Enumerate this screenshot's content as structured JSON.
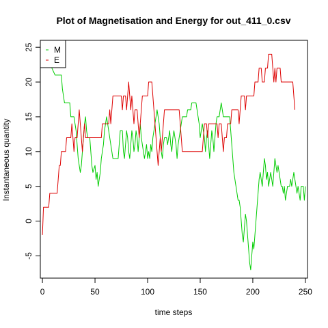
{
  "chart_data": {
    "type": "line",
    "title": "Plot of Magnetisation and Energy for out_411_0.csv",
    "xlabel": "time steps",
    "ylabel": "Instantaneous quantity",
    "xlim": [
      -2,
      252
    ],
    "ylim": [
      -8.2,
      26
    ],
    "xticks": [
      0,
      50,
      100,
      150,
      200,
      250
    ],
    "yticks": [
      -5,
      0,
      5,
      10,
      15,
      20,
      25
    ],
    "grid": false,
    "legend_position": "top-left",
    "series": [
      {
        "name": "M",
        "color": "#00cc00",
        "points": [
          [
            0,
            25
          ],
          [
            3,
            24
          ],
          [
            6,
            23
          ],
          [
            9,
            22
          ],
          [
            12,
            21
          ],
          [
            18,
            21
          ],
          [
            19,
            19
          ],
          [
            20,
            18
          ],
          [
            21,
            17
          ],
          [
            26,
            17
          ],
          [
            27,
            15
          ],
          [
            30,
            15
          ],
          [
            31,
            14
          ],
          [
            32,
            13
          ],
          [
            33,
            11
          ],
          [
            34,
            9
          ],
          [
            35,
            8
          ],
          [
            36,
            7
          ],
          [
            37,
            8
          ],
          [
            38,
            10
          ],
          [
            40,
            14
          ],
          [
            41,
            15
          ],
          [
            42,
            13
          ],
          [
            43,
            12
          ],
          [
            45,
            12
          ],
          [
            46,
            10
          ],
          [
            47,
            8
          ],
          [
            48,
            7
          ],
          [
            50,
            8
          ],
          [
            51,
            6
          ],
          [
            52,
            7
          ],
          [
            53,
            5
          ],
          [
            55,
            7
          ],
          [
            56,
            9
          ],
          [
            58,
            11
          ],
          [
            59,
            13
          ],
          [
            60,
            14
          ],
          [
            61,
            15
          ],
          [
            62,
            14
          ],
          [
            63,
            13
          ],
          [
            64,
            12
          ],
          [
            65,
            11
          ],
          [
            66,
            10
          ],
          [
            67,
            9
          ],
          [
            72,
            9
          ],
          [
            73,
            11
          ],
          [
            74,
            13
          ],
          [
            76,
            13
          ],
          [
            77,
            10
          ],
          [
            78,
            9
          ],
          [
            79,
            11
          ],
          [
            80,
            13
          ],
          [
            81,
            12
          ],
          [
            82,
            10
          ],
          [
            83,
            9
          ],
          [
            84,
            11
          ],
          [
            85,
            13
          ],
          [
            86,
            12
          ],
          [
            87,
            10
          ],
          [
            88,
            11
          ],
          [
            89,
            13
          ],
          [
            90,
            12
          ],
          [
            91,
            10
          ],
          [
            92,
            12
          ],
          [
            93,
            14
          ],
          [
            94,
            12
          ],
          [
            95,
            11
          ],
          [
            96,
            10
          ],
          [
            97,
            9
          ],
          [
            98,
            10
          ],
          [
            99,
            11
          ],
          [
            100,
            9
          ],
          [
            101,
            10
          ],
          [
            102,
            9
          ],
          [
            103,
            11
          ],
          [
            104,
            10
          ],
          [
            105,
            12
          ],
          [
            106,
            13
          ],
          [
            107,
            14
          ],
          [
            108,
            15
          ],
          [
            109,
            16
          ],
          [
            110,
            15
          ],
          [
            111,
            14
          ],
          [
            112,
            12
          ],
          [
            113,
            10
          ],
          [
            114,
            9
          ],
          [
            115,
            11
          ],
          [
            116,
            12
          ],
          [
            118,
            12
          ],
          [
            119,
            11
          ],
          [
            120,
            12
          ],
          [
            121,
            13
          ],
          [
            122,
            11
          ],
          [
            123,
            10
          ],
          [
            124,
            12
          ],
          [
            125,
            13
          ],
          [
            126,
            12
          ],
          [
            127,
            11
          ],
          [
            128,
            9
          ],
          [
            129,
            11
          ],
          [
            130,
            12
          ],
          [
            131,
            13
          ],
          [
            132,
            14
          ],
          [
            133,
            15
          ],
          [
            137,
            15
          ],
          [
            138,
            16
          ],
          [
            141,
            16
          ],
          [
            142,
            17
          ],
          [
            146,
            17
          ],
          [
            147,
            16
          ],
          [
            148,
            15
          ],
          [
            149,
            14
          ],
          [
            150,
            12
          ],
          [
            151,
            13
          ],
          [
            152,
            14
          ],
          [
            153,
            13
          ],
          [
            154,
            12
          ],
          [
            155,
            10
          ],
          [
            156,
            12
          ],
          [
            157,
            13
          ],
          [
            158,
            11
          ],
          [
            159,
            9
          ],
          [
            160,
            11
          ],
          [
            161,
            13
          ],
          [
            162,
            12
          ],
          [
            163,
            10
          ],
          [
            164,
            12
          ],
          [
            165,
            14
          ],
          [
            166,
            15
          ],
          [
            168,
            15
          ],
          [
            169,
            16
          ],
          [
            170,
            17
          ],
          [
            171,
            16
          ],
          [
            172,
            15
          ],
          [
            178,
            15
          ],
          [
            179,
            13
          ],
          [
            180,
            11
          ],
          [
            181,
            9
          ],
          [
            182,
            7
          ],
          [
            183,
            6
          ],
          [
            184,
            5
          ],
          [
            185,
            4
          ],
          [
            186,
            3
          ],
          [
            187,
            3
          ],
          [
            188,
            2
          ],
          [
            189,
            0
          ],
          [
            190,
            -2
          ],
          [
            191,
            -3
          ],
          [
            192,
            -1
          ],
          [
            193,
            1
          ],
          [
            194,
            0
          ],
          [
            195,
            -2
          ],
          [
            196,
            -4
          ],
          [
            197,
            -6
          ],
          [
            198,
            -7
          ],
          [
            199,
            -5
          ],
          [
            200,
            -3
          ],
          [
            201,
            -4
          ],
          [
            202,
            -2
          ],
          [
            203,
            0
          ],
          [
            204,
            2
          ],
          [
            205,
            4
          ],
          [
            206,
            6
          ],
          [
            207,
            7
          ],
          [
            208,
            6
          ],
          [
            209,
            5
          ],
          [
            210,
            7
          ],
          [
            211,
            9
          ],
          [
            212,
            8
          ],
          [
            213,
            6
          ],
          [
            214,
            7
          ],
          [
            215,
            5
          ],
          [
            216,
            6
          ],
          [
            217,
            7
          ],
          [
            218,
            6
          ],
          [
            219,
            5
          ],
          [
            220,
            7
          ],
          [
            221,
            9
          ],
          [
            222,
            8
          ],
          [
            223,
            7
          ],
          [
            224,
            8
          ],
          [
            225,
            7
          ],
          [
            226,
            6
          ],
          [
            227,
            5
          ],
          [
            228,
            5
          ],
          [
            229,
            4
          ],
          [
            230,
            5
          ],
          [
            231,
            3
          ],
          [
            232,
            4
          ],
          [
            233,
            5
          ],
          [
            235,
            5
          ],
          [
            236,
            6
          ],
          [
            237,
            5
          ],
          [
            238,
            6
          ],
          [
            239,
            7
          ],
          [
            240,
            6
          ],
          [
            241,
            5
          ],
          [
            242,
            4
          ],
          [
            243,
            5
          ],
          [
            244,
            4
          ],
          [
            245,
            3
          ],
          [
            246,
            5
          ],
          [
            248,
            5
          ],
          [
            249,
            3
          ],
          [
            250,
            5
          ]
        ]
      },
      {
        "name": "E",
        "color": "#dd0000",
        "points": [
          [
            0,
            -2
          ],
          [
            1,
            2
          ],
          [
            6,
            2
          ],
          [
            7,
            4
          ],
          [
            14,
            4
          ],
          [
            15,
            6
          ],
          [
            16,
            8
          ],
          [
            17,
            8
          ],
          [
            18,
            10
          ],
          [
            22,
            10
          ],
          [
            23,
            12
          ],
          [
            27,
            12
          ],
          [
            28,
            14
          ],
          [
            29,
            12
          ],
          [
            30,
            10
          ],
          [
            31,
            12
          ],
          [
            33,
            12
          ],
          [
            34,
            14
          ],
          [
            35,
            16
          ],
          [
            36,
            14
          ],
          [
            37,
            12
          ],
          [
            38,
            10
          ],
          [
            39,
            12
          ],
          [
            40,
            14
          ],
          [
            41,
            12
          ],
          [
            56,
            12
          ],
          [
            57,
            14
          ],
          [
            63,
            14
          ],
          [
            64,
            16
          ],
          [
            65,
            14
          ],
          [
            66,
            16
          ],
          [
            67,
            18
          ],
          [
            75,
            18
          ],
          [
            76,
            16
          ],
          [
            77,
            18
          ],
          [
            79,
            18
          ],
          [
            80,
            16
          ],
          [
            81,
            18
          ],
          [
            82,
            20
          ],
          [
            83,
            18
          ],
          [
            84,
            16
          ],
          [
            85,
            18
          ],
          [
            86,
            16
          ],
          [
            87,
            14
          ],
          [
            88,
            16
          ],
          [
            90,
            16
          ],
          [
            91,
            14
          ],
          [
            92,
            12
          ],
          [
            93,
            14
          ],
          [
            94,
            16
          ],
          [
            95,
            18
          ],
          [
            100,
            18
          ],
          [
            101,
            20
          ],
          [
            104,
            20
          ],
          [
            105,
            18
          ],
          [
            106,
            16
          ],
          [
            107,
            14
          ],
          [
            108,
            12
          ],
          [
            109,
            10
          ],
          [
            110,
            8
          ],
          [
            111,
            10
          ],
          [
            112,
            12
          ],
          [
            113,
            10
          ],
          [
            114,
            12
          ],
          [
            115,
            14
          ],
          [
            116,
            16
          ],
          [
            130,
            16
          ],
          [
            131,
            14
          ],
          [
            132,
            12
          ],
          [
            133,
            10
          ],
          [
            152,
            10
          ],
          [
            153,
            12
          ],
          [
            154,
            14
          ],
          [
            156,
            14
          ],
          [
            157,
            12
          ],
          [
            158,
            14
          ],
          [
            166,
            14
          ],
          [
            167,
            12
          ],
          [
            168,
            14
          ],
          [
            170,
            14
          ],
          [
            171,
            12
          ],
          [
            172,
            10
          ],
          [
            173,
            12
          ],
          [
            175,
            12
          ],
          [
            176,
            14
          ],
          [
            179,
            14
          ],
          [
            180,
            16
          ],
          [
            186,
            16
          ],
          [
            187,
            14
          ],
          [
            188,
            16
          ],
          [
            189,
            18
          ],
          [
            192,
            18
          ],
          [
            193,
            16
          ],
          [
            194,
            18
          ],
          [
            201,
            18
          ],
          [
            202,
            20
          ],
          [
            205,
            20
          ],
          [
            206,
            22
          ],
          [
            208,
            22
          ],
          [
            209,
            20
          ],
          [
            211,
            20
          ],
          [
            212,
            22
          ],
          [
            214,
            22
          ],
          [
            215,
            24
          ],
          [
            218,
            24
          ],
          [
            219,
            22
          ],
          [
            220,
            20
          ],
          [
            221,
            22
          ],
          [
            222,
            20
          ],
          [
            223,
            22
          ],
          [
            226,
            22
          ],
          [
            227,
            20
          ],
          [
            238,
            20
          ],
          [
            239,
            18
          ],
          [
            240,
            16
          ]
        ]
      }
    ]
  }
}
